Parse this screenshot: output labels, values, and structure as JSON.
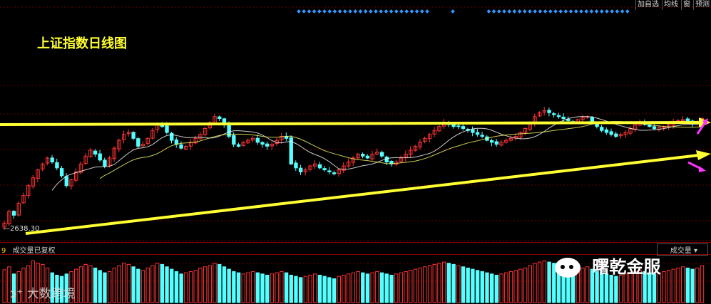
{
  "toolbar": {
    "items": [
      "加自选",
      "均线",
      "窗",
      "预测"
    ]
  },
  "title": "上证指数日线图",
  "low_label": "—2638.30",
  "volume_header": {
    "index": "9",
    "label": "成交量已复权",
    "dropdown": "成交量"
  },
  "watermark_left": "大数跨境",
  "watermark_right": "曙乾金服",
  "colors": {
    "up": "#ff3333",
    "down": "#54ffff",
    "trendline": "#ffff33",
    "arrow": "#ff33ff",
    "diamond": "#3399ff",
    "background": "#000000"
  },
  "chart_data": {
    "type": "candlestick",
    "title": "上证指数日线图",
    "low_marker": 2638.3,
    "closes": [
      2660,
      2720,
      2700,
      2760,
      2800,
      2850,
      2890,
      2930,
      2960,
      2990,
      2970,
      2940,
      2900,
      2850,
      2880,
      2920,
      2960,
      3000,
      3030,
      3010,
      2980,
      2950,
      2990,
      3040,
      3080,
      3110,
      3120,
      3090,
      3050,
      3060,
      3090,
      3130,
      3160,
      3150,
      3120,
      3080,
      3060,
      3040,
      3050,
      3070,
      3090,
      3110,
      3140,
      3170,
      3200,
      3190,
      3160,
      3100,
      3060,
      3050,
      3070,
      3080,
      3090,
      3070,
      3060,
      3050,
      3060,
      3080,
      3100,
      3090,
      2960,
      2940,
      2920,
      2930,
      2950,
      2960,
      2940,
      2930,
      2920,
      2910,
      2930,
      2950,
      2970,
      2990,
      3010,
      3000,
      2990,
      3010,
      3020,
      3000,
      2970,
      2960,
      2970,
      2990,
      3010,
      3030,
      3050,
      3070,
      3090,
      3110,
      3130,
      3150,
      3170,
      3160,
      3150,
      3150,
      3140,
      3130,
      3120,
      3110,
      3100,
      3080,
      3070,
      3060,
      3070,
      3080,
      3090,
      3100,
      3120,
      3140,
      3170,
      3200,
      3220,
      3230,
      3220,
      3210,
      3200,
      3190,
      3180,
      3175,
      3185,
      3195,
      3200,
      3170,
      3150,
      3130,
      3120,
      3110,
      3100,
      3110,
      3120,
      3140,
      3160,
      3170,
      3160,
      3150,
      3140,
      3145,
      3150,
      3160,
      3170,
      3180,
      3185,
      3175,
      3165,
      3170,
      3190
    ],
    "volumes": [
      55,
      60,
      48,
      52,
      58,
      62,
      70,
      66,
      64,
      58,
      50,
      46,
      44,
      48,
      52,
      56,
      60,
      64,
      62,
      58,
      54,
      50,
      52,
      58,
      62,
      66,
      64,
      60,
      56,
      54,
      58,
      62,
      66,
      64,
      60,
      56,
      52,
      48,
      50,
      52,
      54,
      58,
      60,
      62,
      66,
      64,
      60,
      56,
      52,
      50,
      48,
      50,
      52,
      50,
      48,
      46,
      48,
      50,
      52,
      50,
      46,
      44,
      42,
      44,
      46,
      48,
      46,
      44,
      42,
      40,
      44,
      46,
      48,
      50,
      52,
      50,
      48,
      50,
      52,
      50,
      48,
      46,
      48,
      50,
      52,
      54,
      56,
      58,
      60,
      62,
      64,
      66,
      68,
      66,
      64,
      62,
      60,
      58,
      56,
      54,
      52,
      50,
      48,
      46,
      48,
      50,
      52,
      54,
      56,
      58,
      62,
      66,
      68,
      70,
      68,
      66,
      64,
      62,
      60,
      58,
      56,
      58,
      60,
      56,
      52,
      50,
      48,
      46,
      44,
      46,
      48,
      50,
      52,
      54,
      52,
      50,
      48,
      50,
      52,
      54,
      56,
      58,
      60,
      58,
      56,
      58,
      62
    ]
  }
}
